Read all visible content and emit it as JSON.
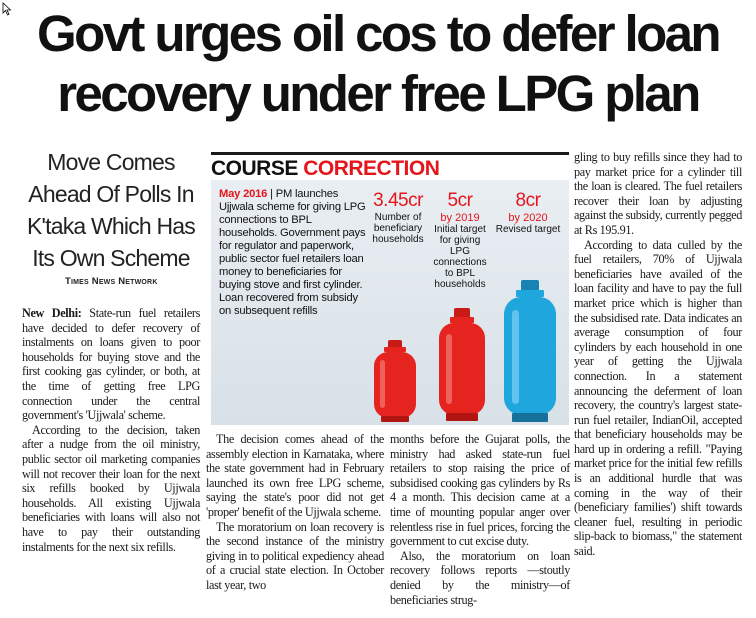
{
  "headline": {
    "line1": "Govt urges oil cos to defer loan",
    "line2": "recovery under free LPG plan"
  },
  "deck": [
    "Move Comes",
    "Ahead Of Polls In",
    "K'taka Which Has",
    "Its Own Scheme"
  ],
  "byline": "Times News Network",
  "graphic": {
    "title_part1": "COURSE ",
    "title_part2": "CORRECTION",
    "date": "May 2016",
    "description": "PM launches Ujjwala scheme for giving LPG connections to BPL households. Government pays for regulator and paperwork, public sector fuel retailers loan money to beneficiaries for buying stove and first cylinder. Loan recovered from subsidy on subsequent refills",
    "stats": [
      {
        "value": "3.45cr",
        "year": "",
        "label": "Number of beneficiary households"
      },
      {
        "value": "5cr",
        "year": "by 2019",
        "label": "Initial target for giving LPG connections to BPL households"
      },
      {
        "value": "8cr",
        "year": "by 2020",
        "label": "Revised target"
      }
    ],
    "colors": {
      "red_cylinder": "#e5231f",
      "blue_cylinder": "#1fa6dc",
      "accent": "#e4161c"
    }
  },
  "article": {
    "dateline": "New Delhi:",
    "col1": [
      "State-run fuel retailers have decided to defer recovery of instalments on loans given to poor households for buying stove and the first cooking gas cylinder, or both, at the time of getting free LPG connection under the central government's 'Ujjwala' scheme.",
      "According to the decision, taken after a nudge from the oil ministry, public sector oil marketing companies will not recover their loan for the next six refills booked by Ujjwala households. All existing Ujjwala beneficiaries with loans will also not have to pay their outstanding instalments for the next six refills."
    ],
    "col2": [
      "The decision comes ahead of the assembly election in Karnataka, where the state government had in February launched its own free LPG scheme, saying the state's poor did not get 'proper' benefit of the Ujjwala scheme.",
      "The moratorium on loan recovery is the second instance of the ministry giving in to political expediency ahead of a crucial state election. In October last year, two"
    ],
    "col3": [
      "months before the Gujarat polls, the ministry had asked state-run fuel retailers to stop raising the price of subsidised cooking gas cylinders by Rs 4 a month. This decision came at a time of mounting popular anger over relentless rise in fuel prices, forcing the government to cut excise duty.",
      "Also, the moratorium on loan recovery follows reports —stoutly denied by the ministry—of beneficiaries strug-"
    ],
    "col4": [
      "gling to buy refills since they had to pay market price for a cylinder till the loan is cleared. The fuel retailers recover their loan by adjusting against the subsidy, currently pegged at Rs 195.91.",
      "According to data culled by the fuel retailers, 70% of Ujjwala beneficiaries have availed of the loan facility and have to pay the full market price which is higher than the subsidised rate. Data indicates an average consumption of four cylinders by each household in one year of getting the Ujjwala connection. In a statement announcing the deferment of loan recovery, the country's largest state-run fuel retailer, IndianOil, accepted that beneficiary households may be hard up in ordering a refill. \"Paying market price for the initial few refills is an additional hurdle that was coming in the way of their (beneficiary families') shift towards cleaner fuel, resulting in periodic slip-back to biomass,\" the statement said."
    ]
  }
}
